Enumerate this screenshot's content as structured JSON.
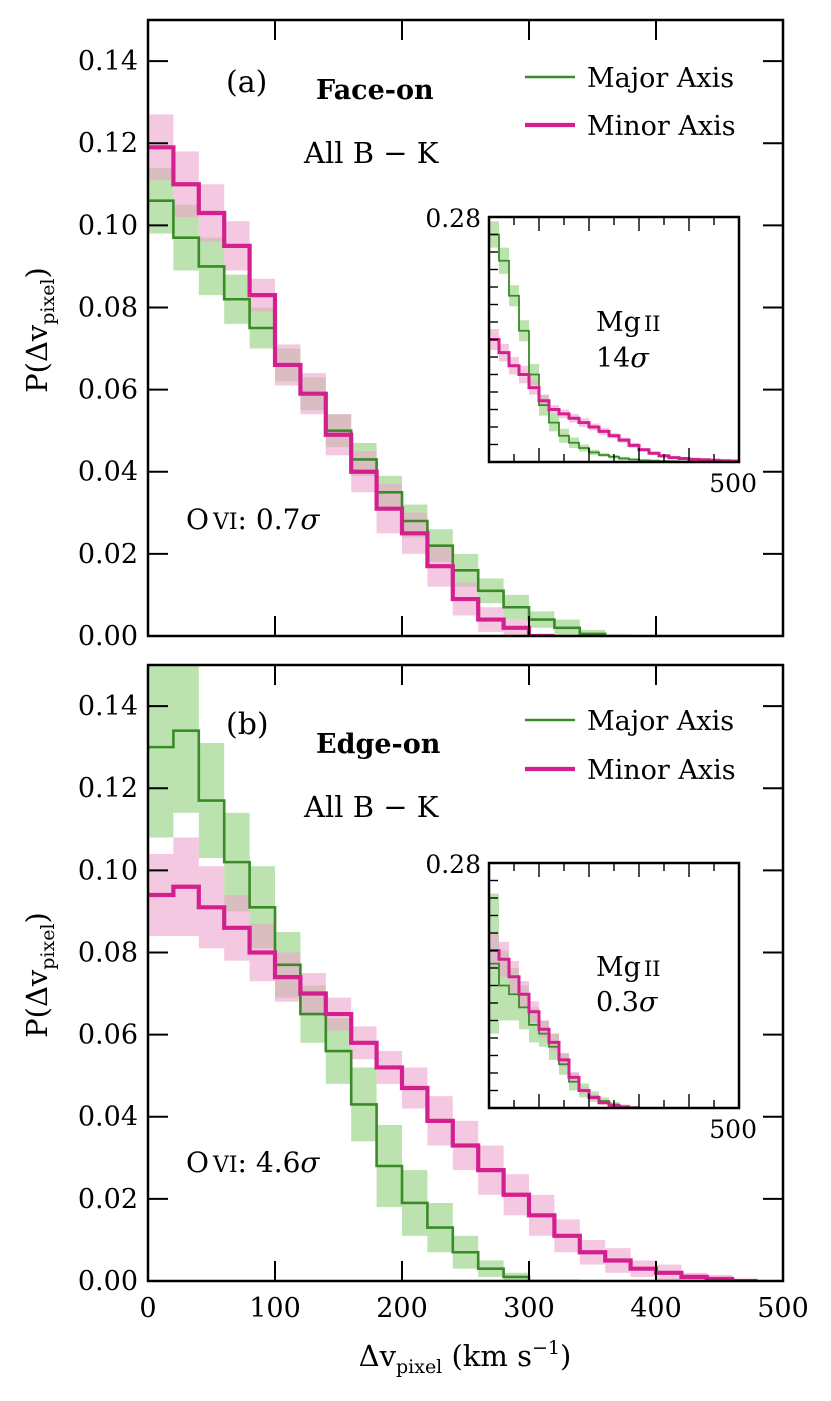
{
  "chart_data": [
    {
      "type": "line",
      "panel_label": "(a)",
      "title": "Face-on",
      "subtitle": "All B − K",
      "ylabel_main": "P(Δv",
      "ylabel_sub": "pixel",
      "ylabel_end": ")",
      "xlim": [
        0,
        500
      ],
      "ylim": [
        0,
        0.15
      ],
      "xticks": [
        0,
        100,
        200,
        300,
        400,
        500
      ],
      "yticks": [
        0.0,
        0.02,
        0.04,
        0.06,
        0.08,
        0.1,
        0.12,
        0.14
      ],
      "ytick_labels": [
        "0.00",
        "0.02",
        "0.04",
        "0.06",
        "0.08",
        "0.10",
        "0.12",
        "0.14"
      ],
      "bin_width": 20,
      "annotation": {
        "ion": "O",
        "ion_stage": "VI",
        "sep": ": ",
        "sig_num": "0.7",
        "sig_sym": "σ"
      },
      "legend": {
        "placement": "top-right",
        "entries": [
          "Major Axis",
          "Minor Axis"
        ]
      },
      "series": [
        {
          "name": "Major Axis",
          "color": "#3a8a28",
          "band_color": "#8fd07a",
          "values": [
            0.106,
            0.097,
            0.09,
            0.082,
            0.075,
            0.066,
            0.059,
            0.05,
            0.043,
            0.035,
            0.028,
            0.022,
            0.016,
            0.011,
            0.007,
            0.004,
            0.002,
            0.0005,
            0.0
          ],
          "err": [
            0.008,
            0.008,
            0.007,
            0.006,
            0.005,
            0.004,
            0.004,
            0.004,
            0.004,
            0.004,
            0.004,
            0.004,
            0.004,
            0.003,
            0.003,
            0.002,
            0.002,
            0.001,
            0.0
          ]
        },
        {
          "name": "Minor Axis",
          "color": "#d4208f",
          "band_color": "#eda3cd",
          "values": [
            0.119,
            0.11,
            0.103,
            0.095,
            0.083,
            0.066,
            0.059,
            0.049,
            0.04,
            0.031,
            0.025,
            0.017,
            0.009,
            0.004,
            0.002,
            0.0
          ],
          "err": [
            0.008,
            0.008,
            0.007,
            0.006,
            0.004,
            0.005,
            0.005,
            0.005,
            0.005,
            0.006,
            0.005,
            0.005,
            0.004,
            0.003,
            0.002,
            0.0
          ]
        }
      ],
      "inset": {
        "title": "Mg",
        "title_stage": "II",
        "significance_num": "14",
        "significance_sym": "σ",
        "ymax_label": "0.28",
        "xmax_label": "500",
        "xlim": [
          0,
          500
        ],
        "ylim": [
          0,
          0.28
        ],
        "bin_width": 20,
        "series": [
          {
            "name": "Major Axis",
            "values": [
              0.26,
              0.23,
              0.19,
              0.15,
              0.1,
              0.065,
              0.045,
              0.03,
              0.022,
              0.016,
              0.011,
              0.008,
              0.006,
              0.004,
              0.003,
              0.002,
              0.0015,
              0.001,
              0.0008,
              0.0005,
              0.0003,
              0.0002,
              0.0001,
              0.0,
              0.0
            ],
            "err": [
              0.015,
              0.015,
              0.012,
              0.012,
              0.012,
              0.012,
              0.01,
              0.008,
              0.006,
              0.004,
              0.003,
              0.002,
              0.002,
              0.002,
              0.001,
              0.001,
              0.001,
              0.0,
              0.0,
              0.0,
              0.0,
              0.0,
              0.0,
              0.0,
              0.0
            ]
          },
          {
            "name": "Minor Axis",
            "values": [
              0.14,
              0.125,
              0.11,
              0.1,
              0.085,
              0.07,
              0.06,
              0.055,
              0.05,
              0.045,
              0.04,
              0.035,
              0.03,
              0.025,
              0.019,
              0.014,
              0.01,
              0.007,
              0.005,
              0.004,
              0.003,
              0.0025,
              0.002,
              0.0015,
              0.0012
            ],
            "err": [
              0.012,
              0.01,
              0.01,
              0.01,
              0.008,
              0.006,
              0.005,
              0.005,
              0.005,
              0.005,
              0.004,
              0.004,
              0.003,
              0.003,
              0.003,
              0.002,
              0.002,
              0.002,
              0.001,
              0.001,
              0.001,
              0.001,
              0.0,
              0.0,
              0.0
            ]
          }
        ]
      }
    },
    {
      "type": "line",
      "panel_label": "(b)",
      "title": "Edge-on",
      "subtitle": "All B − K",
      "ylabel_main": "P(Δv",
      "ylabel_sub": "pixel",
      "ylabel_end": ")",
      "xlabel_main": "Δv",
      "xlabel_sub": "pixel",
      "xlabel_units": " (km s",
      "xlabel_exp": "−1",
      "xlabel_end": ")",
      "xlim": [
        0,
        500
      ],
      "ylim": [
        0,
        0.15
      ],
      "xticks": [
        0,
        100,
        200,
        300,
        400,
        500
      ],
      "xtick_labels": [
        "0",
        "100",
        "200",
        "300",
        "400",
        "500"
      ],
      "yticks": [
        0.0,
        0.02,
        0.04,
        0.06,
        0.08,
        0.1,
        0.12,
        0.14
      ],
      "ytick_labels": [
        "0.00",
        "0.02",
        "0.04",
        "0.06",
        "0.08",
        "0.10",
        "0.12",
        "0.14"
      ],
      "bin_width": 20,
      "annotation": {
        "ion": "O",
        "ion_stage": "VI",
        "sep": ": ",
        "sig_num": "4.6",
        "sig_sym": "σ"
      },
      "legend": {
        "placement": "top-right",
        "entries": [
          "Major Axis",
          "Minor Axis"
        ]
      },
      "series": [
        {
          "name": "Major Axis",
          "color": "#3a8a28",
          "band_color": "#8fd07a",
          "values": [
            0.13,
            0.134,
            0.117,
            0.102,
            0.091,
            0.077,
            0.065,
            0.056,
            0.043,
            0.028,
            0.019,
            0.013,
            0.007,
            0.003,
            0.001,
            0.0,
            0.0
          ],
          "err": [
            0.022,
            0.02,
            0.014,
            0.012,
            0.01,
            0.008,
            0.007,
            0.008,
            0.009,
            0.01,
            0.008,
            0.006,
            0.004,
            0.002,
            0.001,
            0.0,
            0.0
          ]
        },
        {
          "name": "Minor Axis",
          "color": "#d4208f",
          "band_color": "#eda3cd",
          "values": [
            0.094,
            0.096,
            0.091,
            0.086,
            0.08,
            0.074,
            0.07,
            0.065,
            0.058,
            0.052,
            0.047,
            0.039,
            0.033,
            0.027,
            0.021,
            0.016,
            0.011,
            0.007,
            0.005,
            0.003,
            0.002,
            0.001,
            0.0005,
            0.0
          ],
          "err": [
            0.01,
            0.012,
            0.01,
            0.008,
            0.007,
            0.006,
            0.005,
            0.004,
            0.004,
            0.004,
            0.005,
            0.006,
            0.006,
            0.006,
            0.005,
            0.005,
            0.004,
            0.003,
            0.003,
            0.002,
            0.002,
            0.001,
            0.001,
            0.0
          ]
        }
      ],
      "inset": {
        "title": "Mg",
        "title_stage": "II",
        "significance_num": "0.3",
        "significance_sym": "σ",
        "ymax_label": "0.28",
        "xmax_label": "500",
        "xlim": [
          0,
          500
        ],
        "ylim": [
          0,
          0.28
        ],
        "bin_width": 20,
        "series": [
          {
            "name": "Major Axis",
            "values": [
              0.165,
              0.14,
              0.13,
              0.115,
              0.095,
              0.085,
              0.07,
              0.05,
              0.03,
              0.02,
              0.013,
              0.008,
              0.004,
              0.002,
              0.001,
              0.0
            ],
            "err": [
              0.08,
              0.04,
              0.03,
              0.025,
              0.02,
              0.015,
              0.015,
              0.012,
              0.01,
              0.008,
              0.006,
              0.004,
              0.003,
              0.002,
              0.001,
              0.0
            ]
          },
          {
            "name": "Minor Axis",
            "values": [
              0.18,
              0.17,
              0.15,
              0.13,
              0.11,
              0.09,
              0.075,
              0.055,
              0.035,
              0.02,
              0.012,
              0.006,
              0.003,
              0.001,
              0.0
            ],
            "err": [
              0.02,
              0.02,
              0.018,
              0.015,
              0.012,
              0.01,
              0.01,
              0.008,
              0.006,
              0.004,
              0.003,
              0.002,
              0.001,
              0.001,
              0.0
            ]
          }
        ]
      }
    }
  ]
}
